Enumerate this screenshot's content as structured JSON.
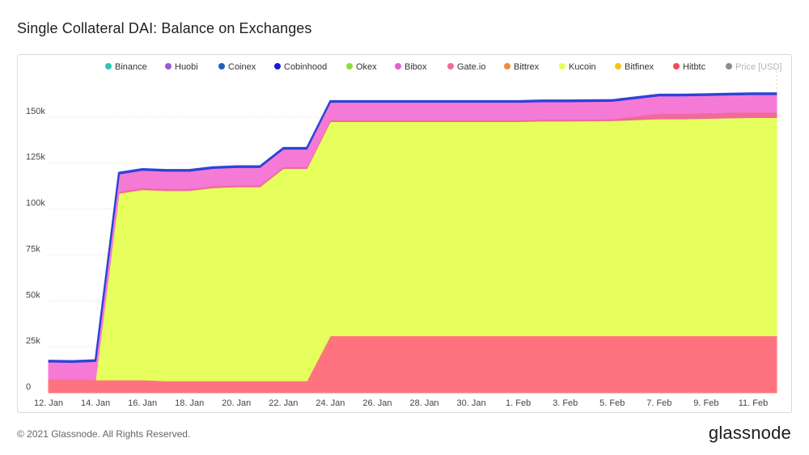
{
  "title": "Single Collateral DAI: Balance on Exchanges",
  "footer": "© 2021 Glassnode. All Rights Reserved.",
  "brand": "glassnode",
  "watermark": "glassnode",
  "chart_data": {
    "type": "area",
    "stacked": true,
    "title": "Single Collateral DAI: Balance on Exchanges",
    "x_tick_labels": [
      "12. Jan",
      "14. Jan",
      "16. Jan",
      "18. Jan",
      "20. Jan",
      "22. Jan",
      "24. Jan",
      "26. Jan",
      "28. Jan",
      "30. Jan",
      "1. Feb",
      "3. Feb",
      "5. Feb",
      "7. Feb",
      "9. Feb",
      "11. Feb"
    ],
    "y_tick_labels": [
      "0",
      "25k",
      "50k",
      "75k",
      "100k",
      "125k",
      "150k"
    ],
    "ylim": [
      0,
      175000
    ],
    "grid": true,
    "legend_position": "top",
    "legend": [
      {
        "name": "Binance",
        "color": "#2ec4b6"
      },
      {
        "name": "Huobi",
        "color": "#9b59d6"
      },
      {
        "name": "Coinex",
        "color": "#1f5fbf"
      },
      {
        "name": "Cobinhood",
        "color": "#1a1ad8"
      },
      {
        "name": "Okex",
        "color": "#8fdc3c"
      },
      {
        "name": "Bibox",
        "color": "#e65fd0"
      },
      {
        "name": "Gate.io",
        "color": "#f06a9a"
      },
      {
        "name": "Bittrex",
        "color": "#f08a3c"
      },
      {
        "name": "Kucoin",
        "color": "#e2ff5a"
      },
      {
        "name": "Bitfinex",
        "color": "#f5c518"
      },
      {
        "name": "Hitbtc",
        "color": "#f04a5a"
      },
      {
        "name": "Price [USD]",
        "color": "#8c8c8c",
        "dim": true
      }
    ],
    "x": [
      "2021-01-12",
      "2021-01-13",
      "2021-01-14",
      "2021-01-15",
      "2021-01-16",
      "2021-01-17",
      "2021-01-18",
      "2021-01-19",
      "2021-01-20",
      "2021-01-21",
      "2021-01-22",
      "2021-01-23",
      "2021-01-24",
      "2021-01-25",
      "2021-01-26",
      "2021-01-27",
      "2021-01-28",
      "2021-01-29",
      "2021-01-30",
      "2021-01-31",
      "2021-02-01",
      "2021-02-02",
      "2021-02-03",
      "2021-02-04",
      "2021-02-05",
      "2021-02-06",
      "2021-02-07",
      "2021-02-08",
      "2021-02-09",
      "2021-02-10",
      "2021-02-11",
      "2021-02-12"
    ],
    "series": [
      {
        "name": "Hitbtc",
        "color": "#ff7380",
        "values": [
          7000,
          7000,
          7000,
          7000,
          7000,
          6500,
          6500,
          6500,
          6500,
          6500,
          6500,
          6500,
          31000,
          31000,
          31000,
          31000,
          31000,
          31000,
          31000,
          31000,
          31000,
          31000,
          31000,
          31000,
          31000,
          31000,
          31000,
          31000,
          31000,
          31000,
          31000,
          31000
        ]
      },
      {
        "name": "Kucoin",
        "color": "#e6ff5c",
        "values": [
          0,
          0,
          0,
          101500,
          103500,
          103500,
          103500,
          105000,
          105500,
          105500,
          115500,
          115500,
          116500,
          116500,
          116500,
          116500,
          116500,
          116500,
          116500,
          116500,
          116500,
          116800,
          116800,
          116900,
          117000,
          117500,
          118000,
          118000,
          118200,
          118500,
          118700,
          118700
        ]
      },
      {
        "name": "Gate.io",
        "color": "#f06a9a",
        "values": [
          500,
          500,
          500,
          1000,
          1000,
          1000,
          1000,
          1000,
          1000,
          1000,
          1000,
          1000,
          1000,
          1000,
          1000,
          1000,
          1000,
          1000,
          1000,
          1000,
          1000,
          1000,
          1000,
          1000,
          1000,
          2000,
          3000,
          3000,
          3000,
          3000,
          3000,
          3000
        ]
      },
      {
        "name": "Bibox",
        "color": "#f57ad6",
        "values": [
          9200,
          9000,
          9500,
          9500,
          9500,
          9500,
          9500,
          9500,
          9500,
          9500,
          9500,
          9500,
          9500,
          9500,
          9500,
          9500,
          9500,
          9500,
          9500,
          9500,
          9500,
          9500,
          9500,
          9500,
          9500,
          9500,
          9500,
          9500,
          9500,
          9500,
          9500,
          9500
        ]
      },
      {
        "name": "Cobinhood",
        "color": "#2a3fd8",
        "values": [
          700,
          700,
          700,
          700,
          700,
          700,
          700,
          700,
          700,
          700,
          700,
          700,
          700,
          700,
          700,
          700,
          700,
          700,
          700,
          700,
          700,
          700,
          700,
          700,
          700,
          700,
          700,
          700,
          700,
          700,
          700,
          700
        ]
      }
    ]
  }
}
